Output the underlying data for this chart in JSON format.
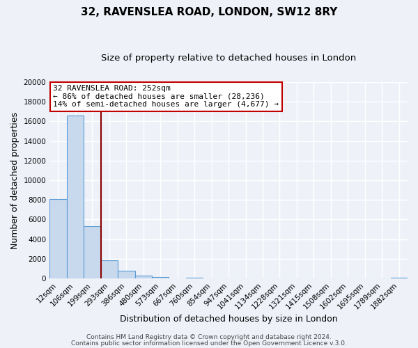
{
  "title": "32, RAVENSLEA ROAD, LONDON, SW12 8RY",
  "subtitle": "Size of property relative to detached houses in London",
  "xlabel": "Distribution of detached houses by size in London",
  "ylabel": "Number of detached properties",
  "categories": [
    "12sqm",
    "106sqm",
    "199sqm",
    "293sqm",
    "386sqm",
    "480sqm",
    "573sqm",
    "667sqm",
    "760sqm",
    "854sqm",
    "947sqm",
    "1041sqm",
    "1134sqm",
    "1228sqm",
    "1321sqm",
    "1415sqm",
    "1508sqm",
    "1602sqm",
    "1695sqm",
    "1789sqm",
    "1882sqm"
  ],
  "values": [
    8100,
    16600,
    5300,
    1850,
    780,
    310,
    150,
    0,
    100,
    0,
    0,
    0,
    0,
    0,
    0,
    0,
    0,
    0,
    0,
    0,
    100
  ],
  "bar_color": "#c8d9ee",
  "bar_edge_color": "#5b9bd5",
  "ylim": [
    0,
    20000
  ],
  "yticks": [
    0,
    2000,
    4000,
    6000,
    8000,
    10000,
    12000,
    14000,
    16000,
    18000,
    20000
  ],
  "vline_color": "#8b0000",
  "annotation_title": "32 RAVENSLEA ROAD: 252sqm",
  "annotation_line1": "← 86% of detached houses are smaller (28,236)",
  "annotation_line2": "14% of semi-detached houses are larger (4,677) →",
  "annotation_box_color": "#ffffff",
  "annotation_box_edge": "#c00000",
  "footer_line1": "Contains HM Land Registry data © Crown copyright and database right 2024.",
  "footer_line2": "Contains public sector information licensed under the Open Government Licence v.3.0.",
  "background_color": "#eef2f8",
  "grid_color": "#ffffff",
  "title_fontsize": 11,
  "subtitle_fontsize": 9.5,
  "axis_label_fontsize": 9,
  "tick_fontsize": 7.5,
  "annotation_fontsize": 8,
  "footer_fontsize": 6.5
}
